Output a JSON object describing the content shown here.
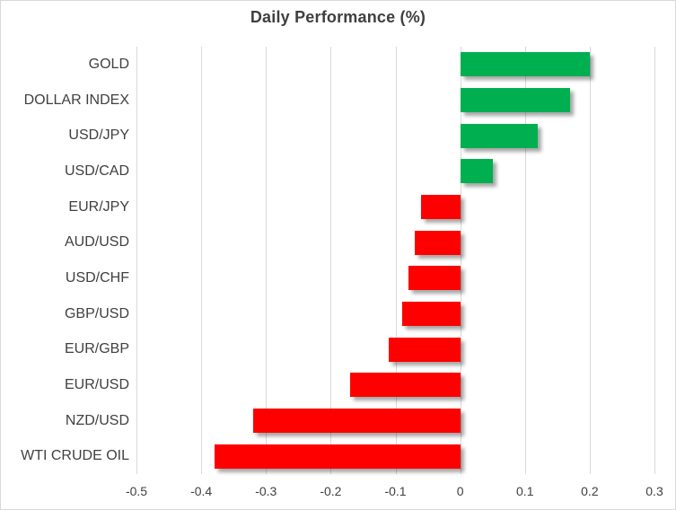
{
  "chart_data": {
    "type": "bar",
    "orientation": "horizontal",
    "title": "Daily Performance (%)",
    "categories": [
      "GOLD",
      "DOLLAR INDEX",
      "USD/JPY",
      "USD/CAD",
      "EUR/JPY",
      "AUD/USD",
      "USD/CHF",
      "GBP/USD",
      "EUR/GBP",
      "EUR/USD",
      "NZD/USD",
      "WTI CRUDE OIL"
    ],
    "values": [
      0.2,
      0.17,
      0.12,
      0.05,
      -0.06,
      -0.07,
      -0.08,
      -0.09,
      -0.11,
      -0.17,
      -0.32,
      -0.38
    ],
    "xlabel": "",
    "ylabel": "",
    "xlim": [
      -0.5,
      0.3
    ],
    "xticks": [
      -0.5,
      -0.4,
      -0.3,
      -0.2,
      -0.1,
      0,
      0.1,
      0.2,
      0.3
    ],
    "xtick_labels": [
      "-0.5",
      "-0.4",
      "-0.3",
      "-0.2",
      "-0.1",
      "0",
      "0.1",
      "0.2",
      "0.3"
    ],
    "grid": true,
    "legend": false,
    "colors": {
      "positive_bar": "#00b050",
      "negative_bar": "#ff0000",
      "gridline": "#d9d9d9",
      "title_text": "#3f3f3f",
      "label_text": "#404040",
      "chart_border": "#d9d9d9",
      "background": "#ffffff"
    }
  }
}
